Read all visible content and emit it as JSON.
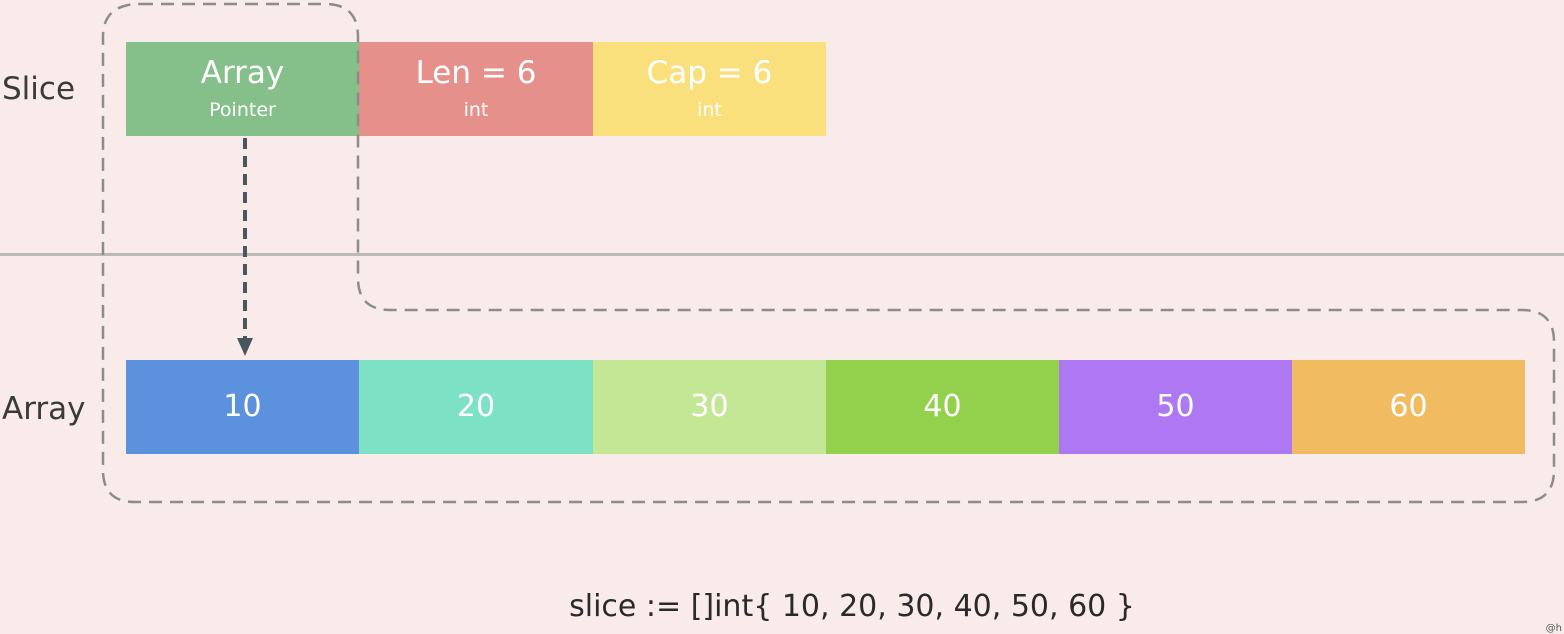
{
  "labels": {
    "slice": "Slice",
    "array": "Array"
  },
  "slice_header": [
    {
      "main": "Array",
      "sub": "Pointer",
      "color": "#85c08a"
    },
    {
      "main": "Len = 6",
      "sub": "int",
      "color": "#e5908a"
    },
    {
      "main": "Cap = 6",
      "sub": "int",
      "color": "#f9e07c"
    }
  ],
  "array_cells": [
    {
      "value": "10",
      "color": "#5b91dd"
    },
    {
      "value": "20",
      "color": "#7de2c5"
    },
    {
      "value": "30",
      "color": "#c4e795"
    },
    {
      "value": "40",
      "color": "#93d14d"
    },
    {
      "value": "50",
      "color": "#ad78f2"
    },
    {
      "value": "60",
      "color": "#f1bb62"
    }
  ],
  "code": "slice := []int{ 10, 20, 30, 40, 50, 60 }",
  "watermark": "@h",
  "colors": {
    "dashed": "#8c8c8c",
    "arrow": "#4a5560",
    "divider": "#bcb8b8"
  }
}
